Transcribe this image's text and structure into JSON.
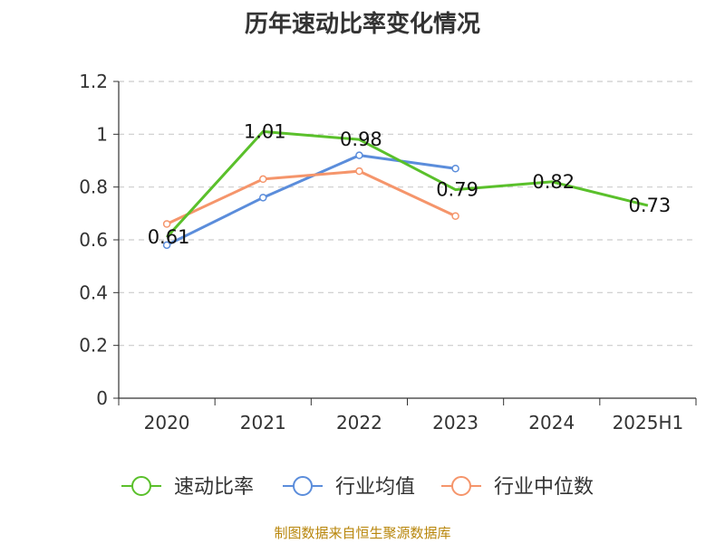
{
  "chart_data": {
    "type": "line",
    "title": "历年速动比率变化情况",
    "categories": [
      "2020",
      "2021",
      "2022",
      "2023",
      "2024",
      "2025H1"
    ],
    "ylim": [
      0,
      1.2
    ],
    "yticks": [
      "0",
      "0.2",
      "0.4",
      "0.6",
      "0.8",
      "1",
      "1.2"
    ],
    "grid": true,
    "legend_position": "bottom",
    "series": [
      {
        "name": "速动比率",
        "color": "#5ac02b",
        "values": [
          0.61,
          1.01,
          0.98,
          0.79,
          0.82,
          0.73
        ],
        "labels": [
          "0.61",
          "1.01",
          "0.98",
          "0.79",
          "0.82",
          "0.73"
        ]
      },
      {
        "name": "行业均值",
        "color": "#5b8ddb",
        "values": [
          0.58,
          0.76,
          0.92,
          0.87,
          null,
          null
        ]
      },
      {
        "name": "行业中位数",
        "color": "#f5956b",
        "values": [
          0.66,
          0.83,
          0.86,
          0.69,
          null,
          null
        ]
      }
    ]
  },
  "footer": {
    "source": "制图数据来自恒生聚源数据库"
  }
}
